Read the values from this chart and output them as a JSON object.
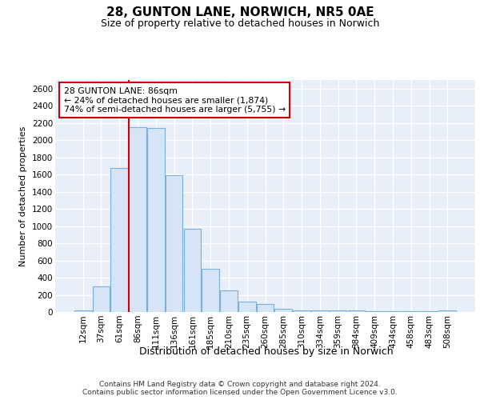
{
  "title_line1": "28, GUNTON LANE, NORWICH, NR5 0AE",
  "title_line2": "Size of property relative to detached houses in Norwich",
  "xlabel": "Distribution of detached houses by size in Norwich",
  "ylabel": "Number of detached properties",
  "annotation_line1": "28 GUNTON LANE: 86sqm",
  "annotation_line2": "← 24% of detached houses are smaller (1,874)",
  "annotation_line3": "74% of semi-detached houses are larger (5,755) →",
  "property_line_color": "#cc0000",
  "bar_fill_color": "#d6e4f5",
  "bar_edge_color": "#7ab0d8",
  "background_color": "#e8eff8",
  "grid_color": "#ffffff",
  "categories": [
    "12sqm",
    "37sqm",
    "61sqm",
    "86sqm",
    "111sqm",
    "136sqm",
    "161sqm",
    "185sqm",
    "210sqm",
    "235sqm",
    "260sqm",
    "285sqm",
    "310sqm",
    "334sqm",
    "359sqm",
    "384sqm",
    "409sqm",
    "434sqm",
    "458sqm",
    "483sqm",
    "508sqm"
  ],
  "values": [
    20,
    295,
    1675,
    2150,
    2140,
    1590,
    970,
    500,
    250,
    120,
    95,
    40,
    22,
    18,
    15,
    15,
    10,
    8,
    8,
    5,
    20
  ],
  "property_bin_index": 3,
  "ylim": [
    0,
    2700
  ],
  "yticks": [
    0,
    200,
    400,
    600,
    800,
    1000,
    1200,
    1400,
    1600,
    1800,
    2000,
    2200,
    2400,
    2600
  ],
  "footer_line1": "Contains HM Land Registry data © Crown copyright and database right 2024.",
  "footer_line2": "Contains public sector information licensed under the Open Government Licence v3.0.",
  "title_fontsize": 11,
  "subtitle_fontsize": 9,
  "ylabel_fontsize": 8,
  "xlabel_fontsize": 9,
  "tick_fontsize": 7.5,
  "footer_fontsize": 6.5
}
